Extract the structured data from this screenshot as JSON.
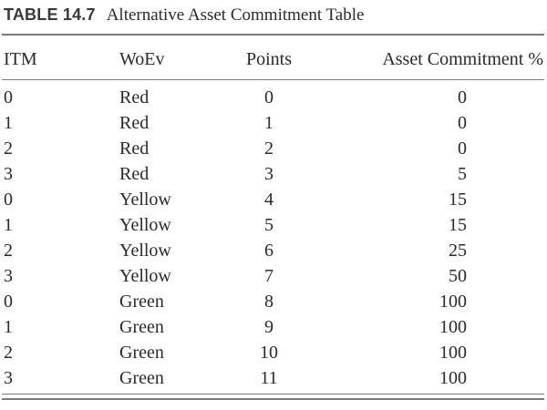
{
  "caption": {
    "label": "TABLE 14.7",
    "title": "Alternative Asset Commitment Table"
  },
  "columns": [
    "ITM",
    "WoEv",
    "Points",
    "Asset Commitment %"
  ],
  "rows": [
    [
      "0",
      "Red",
      "0",
      "0"
    ],
    [
      "1",
      "Red",
      "1",
      "0"
    ],
    [
      "2",
      "Red",
      "2",
      "0"
    ],
    [
      "3",
      "Red",
      "3",
      "5"
    ],
    [
      "0",
      "Yellow",
      "4",
      "15"
    ],
    [
      "1",
      "Yellow",
      "5",
      "15"
    ],
    [
      "2",
      "Yellow",
      "6",
      "25"
    ],
    [
      "3",
      "Yellow",
      "7",
      "50"
    ],
    [
      "0",
      "Green",
      "8",
      "100"
    ],
    [
      "1",
      "Green",
      "9",
      "100"
    ],
    [
      "2",
      "Green",
      "10",
      "100"
    ],
    [
      "3",
      "Green",
      "11",
      "100"
    ]
  ]
}
